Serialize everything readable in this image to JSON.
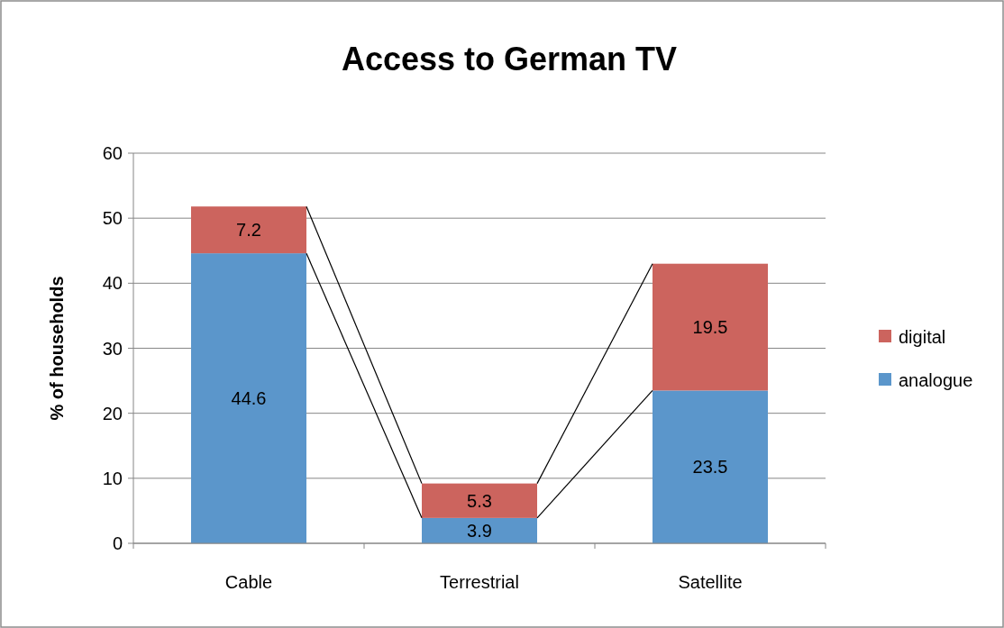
{
  "chart_data": {
    "type": "bar",
    "title": "Access to German TV",
    "ylabel": "% of households",
    "categories": [
      "Cable",
      "Terrestrial",
      "Satellite"
    ],
    "stacked": true,
    "series": [
      {
        "name": "analogue",
        "color": "#5b96cb",
        "values": [
          44.6,
          3.9,
          23.5
        ]
      },
      {
        "name": "digital",
        "color": "#cc645e",
        "values": [
          7.2,
          5.3,
          19.5
        ]
      }
    ],
    "ylim": [
      0,
      60
    ],
    "yticks": [
      0,
      10,
      20,
      30,
      40,
      50,
      60
    ],
    "grid": "y",
    "legend": "right",
    "data_labels": true
  }
}
